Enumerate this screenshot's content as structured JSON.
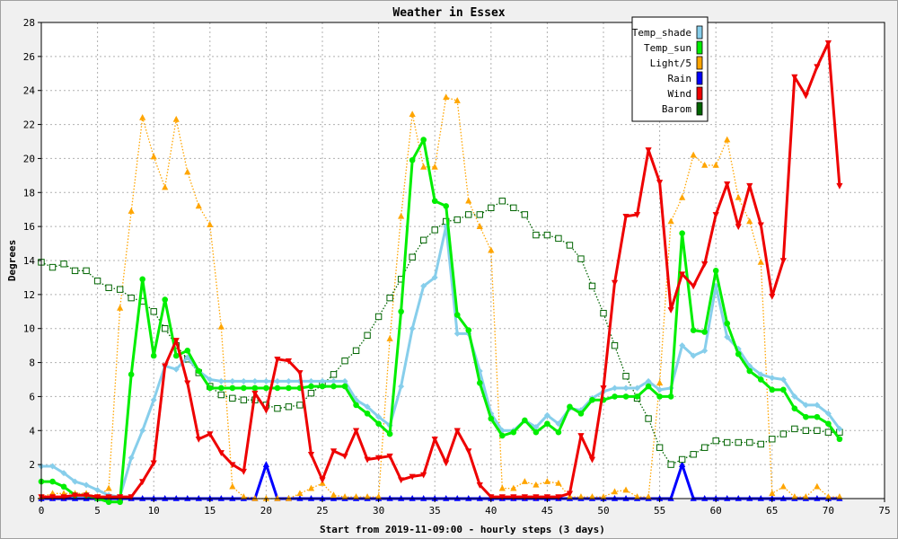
{
  "chart_data": {
    "type": "line",
    "title": "Weather in Essex",
    "xlabel": "Start from 2019-11-09:00 - hourly steps (3 days)",
    "ylabel": "Degrees",
    "xlim": [
      0,
      75
    ],
    "ylim": [
      0,
      28
    ],
    "x_ticks": [
      "0",
      "5",
      "10",
      "15",
      "20",
      "25",
      "30",
      "35",
      "40",
      "45",
      "50",
      "55",
      "60",
      "65",
      "70",
      "75"
    ],
    "y_ticks": [
      "0",
      "2",
      "4",
      "6",
      "8",
      "10",
      "12",
      "14",
      "16",
      "18",
      "20",
      "22",
      "24",
      "26",
      "28"
    ],
    "grid": true,
    "legend_position": "top-right",
    "series": [
      {
        "name": "Temp_shade",
        "color": "#87ceeb",
        "marker": "diamond",
        "style": "solid",
        "values": [
          1.9,
          1.9,
          1.5,
          1.0,
          0.8,
          0.5,
          0.2,
          0.1,
          2.4,
          4.0,
          5.8,
          7.8,
          7.6,
          8.3,
          7.5,
          7.0,
          6.9,
          6.9,
          6.9,
          6.9,
          6.9,
          6.9,
          6.9,
          6.9,
          6.9,
          6.9,
          6.9,
          6.9,
          5.8,
          5.4,
          4.8,
          4.3,
          6.6,
          10.0,
          12.5,
          13.0,
          16.0,
          9.7,
          9.7,
          7.5,
          5.0,
          4.0,
          4.0,
          4.6,
          4.2,
          4.9,
          4.4,
          5.3,
          5.2,
          5.9,
          6.3,
          6.5,
          6.5,
          6.5,
          6.9,
          6.4,
          6.5,
          9.0,
          8.4,
          8.7,
          12.5,
          9.5,
          8.8,
          7.8,
          7.3,
          7.1,
          7.0,
          6.0,
          5.5,
          5.5,
          5.0,
          4.1
        ]
      },
      {
        "name": "Temp_sun",
        "color": "#00ee00",
        "marker": "circle",
        "style": "solid",
        "values": [
          1.0,
          1.0,
          0.7,
          0.2,
          0.2,
          0.0,
          -0.2,
          -0.2,
          7.3,
          12.9,
          8.4,
          11.7,
          8.4,
          8.7,
          7.5,
          6.5,
          6.5,
          6.5,
          6.5,
          6.5,
          6.5,
          6.5,
          6.5,
          6.5,
          6.6,
          6.6,
          6.6,
          6.6,
          5.5,
          5.0,
          4.4,
          3.8,
          11.0,
          19.9,
          21.1,
          17.5,
          17.2,
          10.8,
          9.9,
          6.8,
          4.7,
          3.7,
          3.9,
          4.6,
          3.9,
          4.4,
          3.9,
          5.4,
          5.0,
          5.8,
          5.8,
          6.0,
          6.0,
          6.0,
          6.6,
          6.0,
          6.0,
          15.6,
          9.9,
          9.8,
          13.4,
          10.3,
          8.5,
          7.5,
          7.0,
          6.4,
          6.4,
          5.3,
          4.8,
          4.8,
          4.4,
          3.5
        ]
      },
      {
        "name": "Light/5",
        "color": "#ffa500",
        "marker": "triangle-up",
        "style": "dotted",
        "values": [
          0.1,
          0.3,
          0.3,
          0.3,
          0.3,
          0.1,
          0.6,
          11.2,
          16.9,
          22.4,
          20.1,
          18.3,
          22.3,
          19.2,
          17.2,
          16.1,
          10.1,
          0.7,
          0.1,
          0.0,
          0.0,
          0.0,
          0.0,
          0.3,
          0.6,
          0.9,
          0.2,
          0.1,
          0.1,
          0.1,
          0.1,
          9.4,
          16.6,
          22.6,
          19.5,
          19.5,
          23.6,
          23.4,
          17.5,
          16.0,
          14.6,
          0.6,
          0.6,
          1.0,
          0.8,
          1.0,
          0.9,
          0.1,
          0.1,
          0.1,
          0.1,
          0.4,
          0.5,
          0.1,
          0.1,
          6.8,
          16.3,
          17.7,
          20.2,
          19.6,
          19.6,
          21.1,
          17.7,
          16.3,
          13.9,
          0.3,
          0.7,
          0.1,
          0.1,
          0.7,
          0.1,
          0.1
        ]
      },
      {
        "name": "Rain",
        "color": "#0000ff",
        "marker": "triangle-up",
        "style": "solid",
        "values": [
          0,
          0,
          0,
          0,
          0,
          0,
          0,
          0,
          0,
          0,
          0,
          0,
          0,
          0,
          0,
          0,
          0,
          0,
          0,
          0,
          2.0,
          0,
          0,
          0,
          0,
          0,
          0,
          0,
          0,
          0,
          0,
          0,
          0,
          0,
          0,
          0,
          0,
          0,
          0,
          0,
          0,
          0,
          0,
          0,
          0,
          0,
          0,
          0,
          0,
          0,
          0,
          0,
          0,
          0,
          0,
          0,
          0,
          2.0,
          0,
          0,
          0,
          0,
          0,
          0,
          0,
          0,
          0,
          0,
          0,
          0,
          0,
          0
        ]
      },
      {
        "name": "Wind",
        "color": "#ee0000",
        "marker": "triangle-down",
        "style": "solid",
        "values": [
          0.1,
          0.1,
          0.1,
          0.2,
          0.2,
          0.1,
          0.1,
          0.1,
          0.1,
          1.0,
          2.1,
          7.8,
          9.3,
          6.8,
          3.5,
          3.8,
          2.7,
          2.0,
          1.6,
          6.2,
          5.2,
          8.2,
          8.1,
          7.4,
          2.6,
          1.1,
          2.8,
          2.5,
          4.0,
          2.3,
          2.4,
          2.5,
          1.1,
          1.3,
          1.4,
          3.5,
          2.1,
          4.0,
          2.8,
          0.8,
          0.1,
          0.1,
          0.1,
          0.1,
          0.1,
          0.1,
          0.1,
          0.3,
          3.7,
          2.3,
          6.5,
          12.7,
          16.6,
          16.7,
          20.5,
          18.6,
          11.1,
          13.2,
          12.5,
          13.8,
          16.7,
          18.5,
          16.0,
          18.4,
          16.1,
          11.9,
          14.0,
          24.8,
          23.7,
          25.4,
          26.8,
          18.4
        ]
      },
      {
        "name": "Barom",
        "color": "#006400",
        "marker": "square-open",
        "style": "dotted",
        "values": [
          13.9,
          13.6,
          13.8,
          13.4,
          13.4,
          12.8,
          12.4,
          12.3,
          11.8,
          11.6,
          11.0,
          10.0,
          9.0,
          8.2,
          7.4,
          6.6,
          6.1,
          5.9,
          5.8,
          5.8,
          5.5,
          5.3,
          5.4,
          5.5,
          6.2,
          6.7,
          7.3,
          8.1,
          8.7,
          9.6,
          10.7,
          11.8,
          12.9,
          14.2,
          15.2,
          15.8,
          16.3,
          16.4,
          16.7,
          16.7,
          17.1,
          17.5,
          17.1,
          16.7,
          15.5,
          15.5,
          15.3,
          14.9,
          14.1,
          12.5,
          10.9,
          9.0,
          7.2,
          5.9,
          4.7,
          3.0,
          2.0,
          2.3,
          2.6,
          3.0,
          3.4,
          3.3,
          3.3,
          3.3,
          3.2,
          3.5,
          3.8,
          4.1,
          4.0,
          4.0,
          3.9,
          3.9
        ]
      }
    ]
  }
}
